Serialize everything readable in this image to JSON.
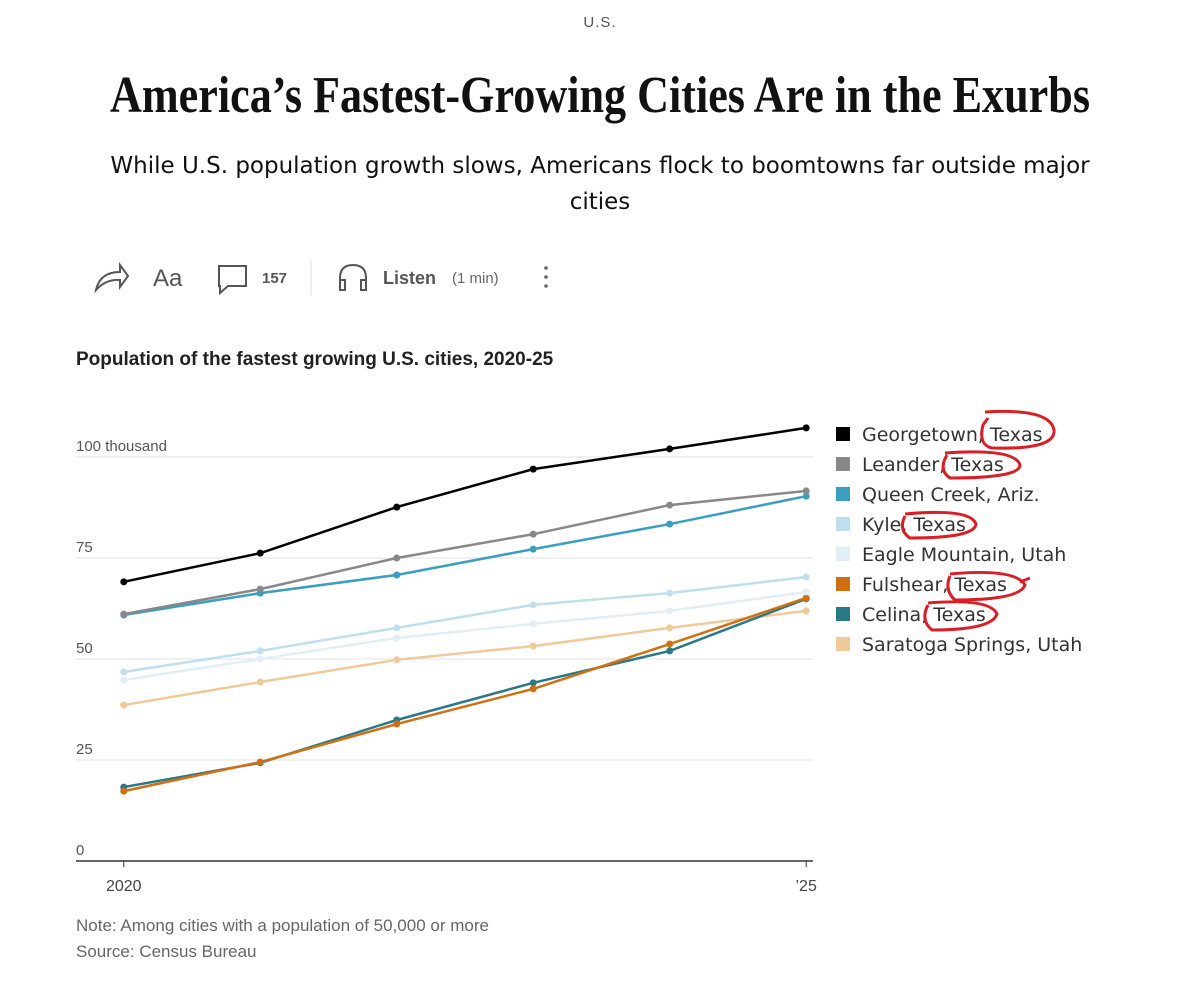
{
  "article": {
    "section": "U.S.",
    "headline": "America’s Fastest-Growing Cities Are in the Exurbs",
    "subtitle": "While U.S. population growth slows, Americans flock to boomtowns far outside major cities",
    "toolbar": {
      "text_size": "Aa",
      "comments": "157",
      "listen": "Listen",
      "duration": "(1 min)"
    }
  },
  "chart_data": {
    "type": "line",
    "title": "Population of the fastest growing U.S. cities, 2020-25",
    "x": [
      2020,
      2021,
      2022,
      2023,
      2024,
      2025
    ],
    "xlim": [
      2019.65,
      2025.05
    ],
    "xticks": [
      2020,
      {
        "value": 2025,
        "label": "’25"
      }
    ],
    "ylim": [
      0,
      100
    ],
    "yticks": [
      0,
      25,
      50,
      75,
      {
        "value": 100,
        "label": "100 thousand"
      }
    ],
    "grid": true,
    "legend": "right",
    "series": [
      {
        "name": "Georgetown, Texas",
        "color": "#000000",
        "values": [
          69.1,
          76.2,
          87.6,
          97.0,
          102.0,
          107.2
        ]
      },
      {
        "name": "Leander, Texas",
        "color": "#888888",
        "values": [
          61.1,
          67.3,
          75.0,
          80.9,
          88.1,
          91.6
        ]
      },
      {
        "name": "Queen Creek, Ariz.",
        "color": "#3a9fbf",
        "values": [
          60.9,
          66.3,
          70.8,
          77.2,
          83.4,
          90.3
        ]
      },
      {
        "name": "Kyle, Texas",
        "color": "#c0dfee",
        "values": [
          46.8,
          52.0,
          57.7,
          63.4,
          66.3,
          70.3
        ]
      },
      {
        "name": "Eagle Mountain, Utah",
        "color": "#e2eef5",
        "values": [
          44.8,
          50.0,
          55.2,
          58.7,
          61.9,
          66.6
        ]
      },
      {
        "name": "Fulshear, Texas",
        "color": "#d07012",
        "values": [
          17.3,
          24.5,
          33.9,
          42.6,
          53.7,
          65.1
        ]
      },
      {
        "name": "Celina, Texas",
        "color": "#2a7987",
        "values": [
          18.3,
          24.3,
          34.9,
          44.1,
          52.0,
          64.9
        ]
      },
      {
        "name": "Saratoga Springs, Utah",
        "color": "#f0c99b",
        "values": [
          38.6,
          44.3,
          49.8,
          53.2,
          57.7,
          61.9
        ]
      }
    ],
    "note": "Note: Among cities with a population of 50,000 or more",
    "source": "Source: Census Bureau"
  }
}
